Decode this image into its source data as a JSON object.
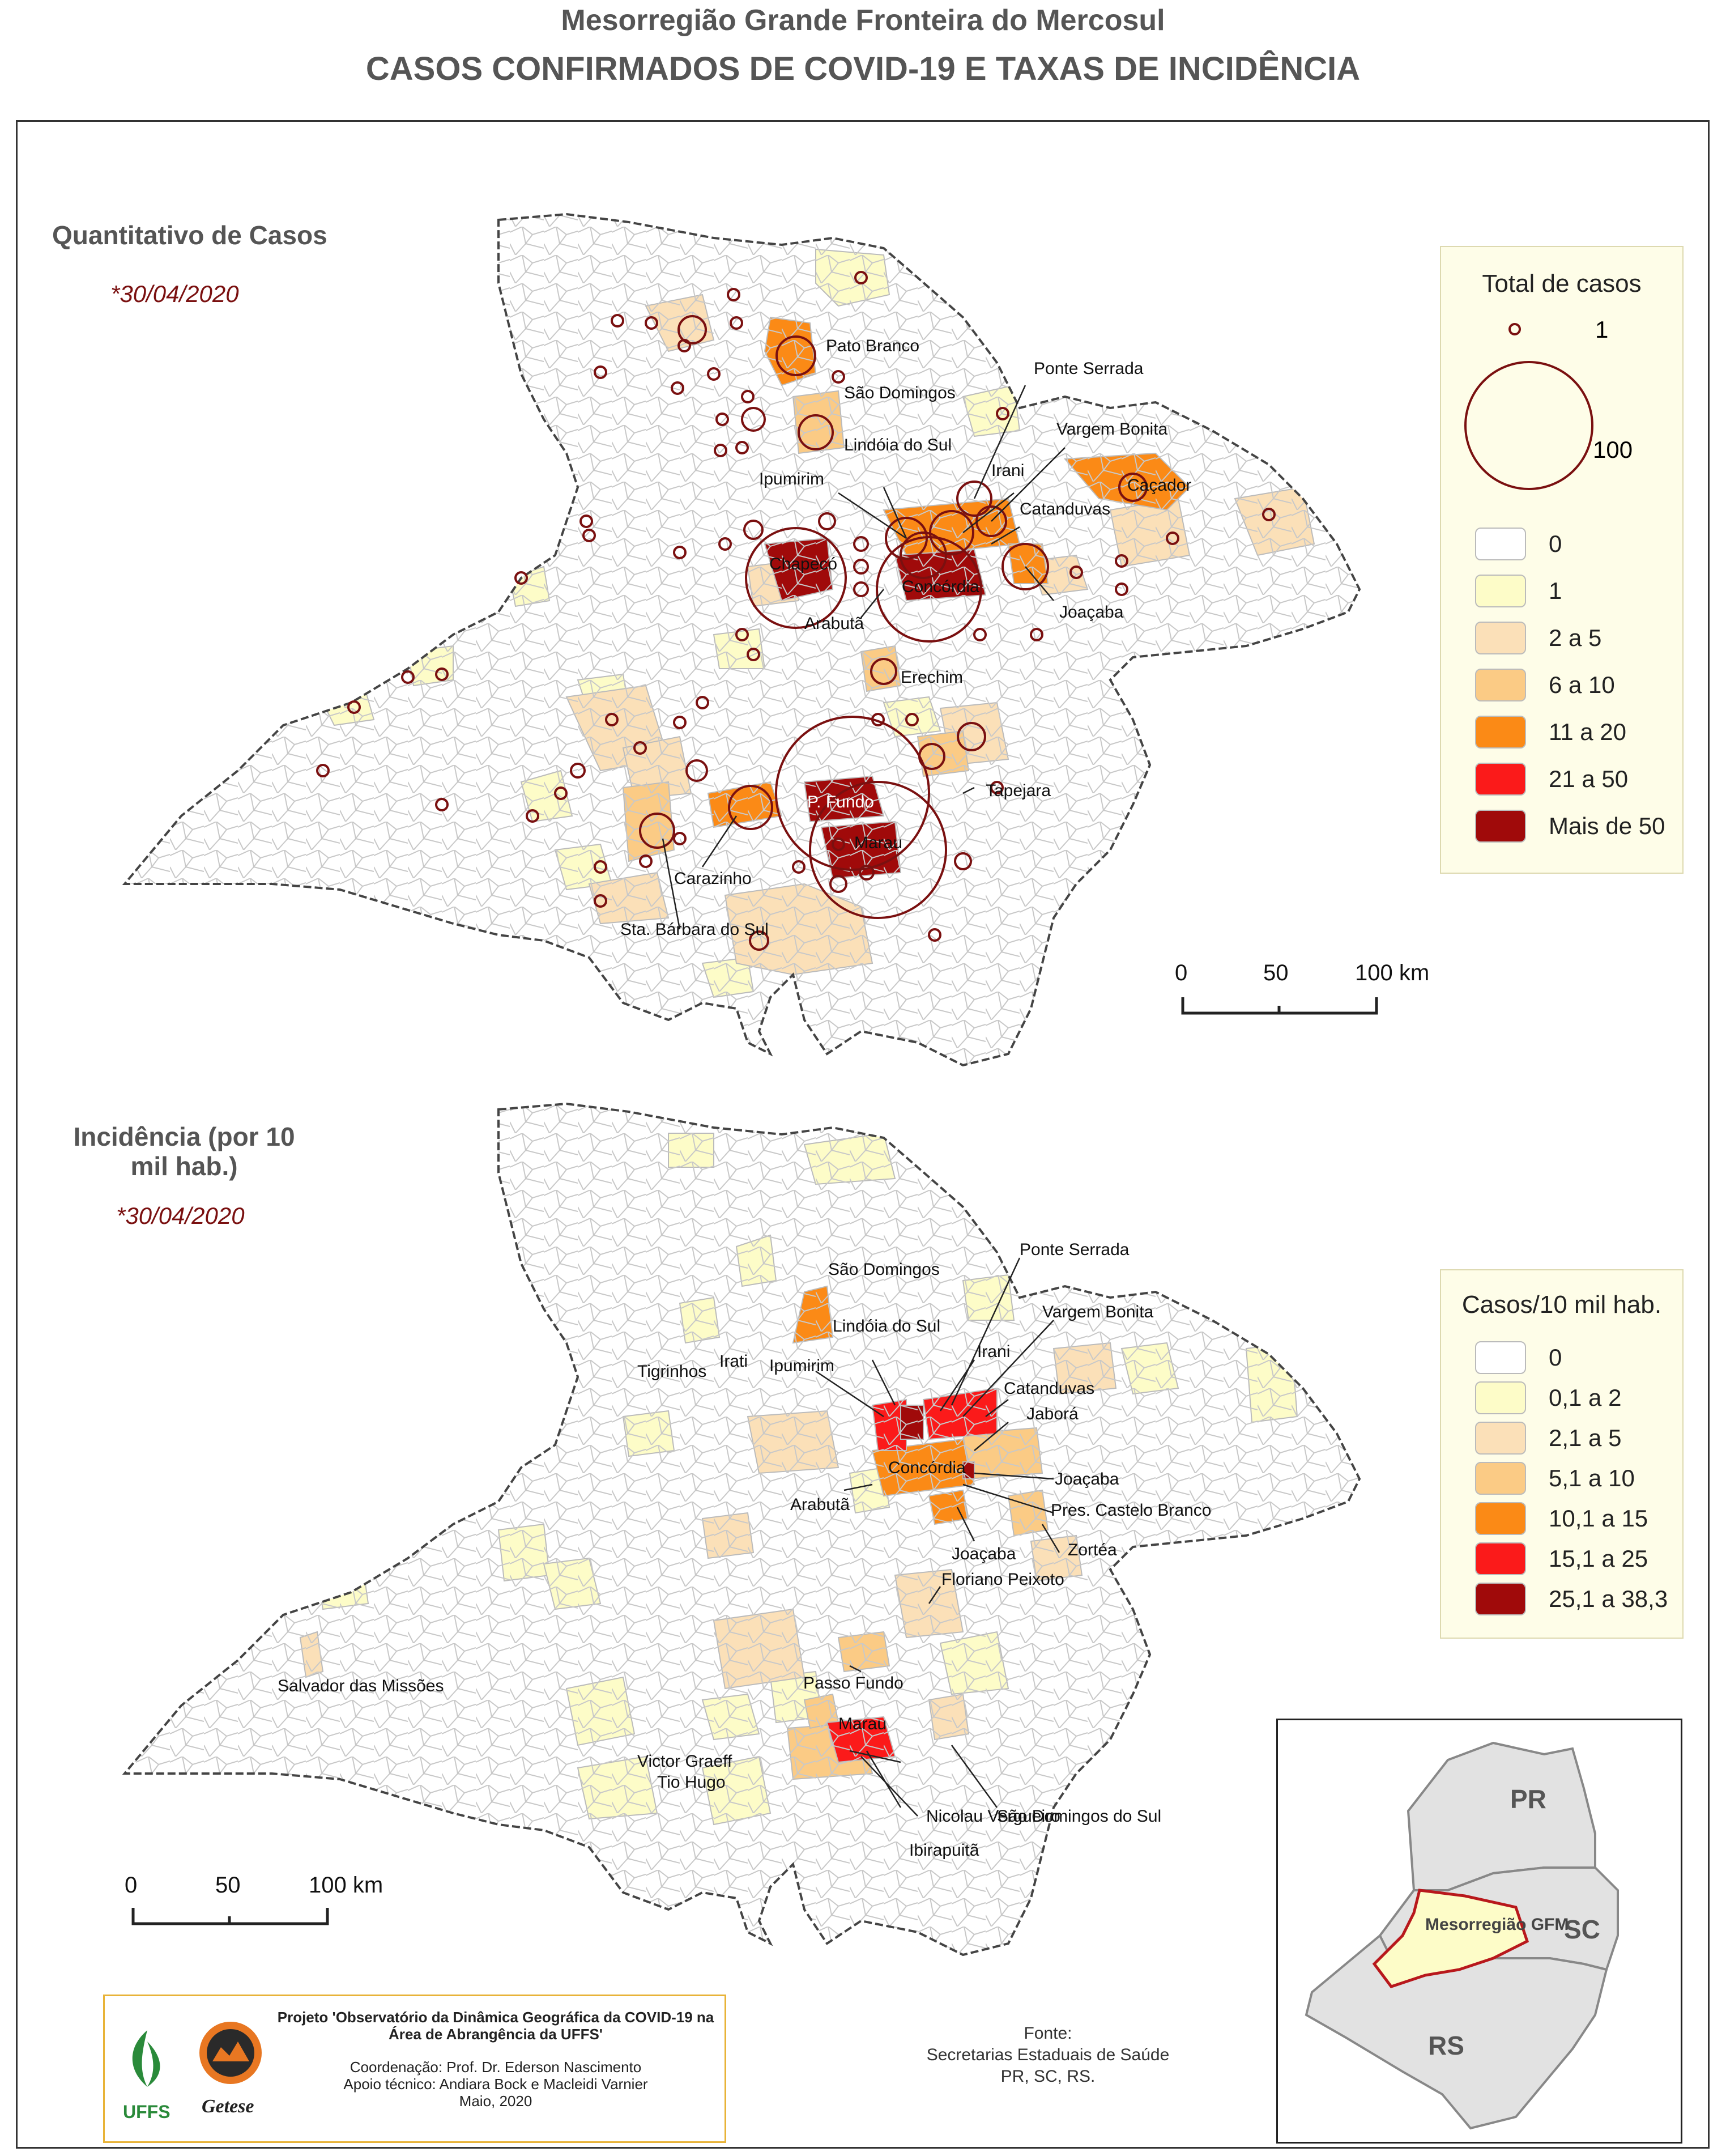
{
  "header": {
    "title": "Mesorregião Grande Fronteira do Mercosul",
    "subtitle": "CASOS CONFIRMADOS DE COVID-19 E TAXAS DE INCIDÊNCIA"
  },
  "map_cases": {
    "section_title": "Quantitativo de Casos",
    "date": "*30/04/2020",
    "legend": {
      "title": "Total de casos",
      "size_labels": [
        "1",
        "100"
      ],
      "classes": [
        {
          "label": "0",
          "color": "#ffffff"
        },
        {
          "label": "1",
          "color": "#fdfcc8"
        },
        {
          "label": "2 a 5",
          "color": "#fbe0b8"
        },
        {
          "label": "6 a 10",
          "color": "#fbcb85"
        },
        {
          "label": "11 a 20",
          "color": "#fb8a16"
        },
        {
          "label": "21 a 50",
          "color": "#fb1a1a"
        },
        {
          "label": "Mais de 50",
          "color": "#a00a0a"
        }
      ]
    },
    "scale": {
      "ticks": [
        "0",
        "50",
        "100 km"
      ]
    },
    "places": {
      "pato_branco": "Pato Branco",
      "sao_domingos": "São Domingos",
      "ponte_serrada": "Ponte Serrada",
      "vargem_bonita": "Vargem Bonita",
      "lindoia": "Lindóia do Sul",
      "cacador": "Caçador",
      "irani": "Irani",
      "ipumirim": "Ipumirim",
      "catanduvas": "Catanduvas",
      "chapeco": "Chapecó",
      "concordia": "Concórdia",
      "joacaba": "Joaçaba",
      "arabuta": "Arabutã",
      "erechim": "Erechim",
      "tapejara": "Tapejara",
      "passo_fundo": "P. Fundo",
      "marau": "Marau",
      "carazinho": "Carazinho",
      "santa_barbara": "Sta. Bárbara do Sul"
    }
  },
  "map_incidence": {
    "section_title": "Incidência (por 10 mil hab.)",
    "date": "*30/04/2020",
    "legend": {
      "title": "Casos/10 mil hab.",
      "classes": [
        {
          "label": "0",
          "color": "#ffffff"
        },
        {
          "label": "0,1 a 2",
          "color": "#fdfcc8"
        },
        {
          "label": "2,1 a 5",
          "color": "#fbe0b8"
        },
        {
          "label": "5,1 a 10",
          "color": "#fbcb85"
        },
        {
          "label": "10,1 a 15",
          "color": "#fb8a16"
        },
        {
          "label": "15,1 a 25",
          "color": "#fb1a1a"
        },
        {
          "label": "25,1 a 38,3",
          "color": "#a00a0a"
        }
      ]
    },
    "scale": {
      "ticks": [
        "0",
        "50",
        "100 km"
      ]
    },
    "places": {
      "sao_domingos": "São Domingos",
      "ponte_serrada": "Ponte Serrada",
      "vargem_bonita": "Vargem Bonita",
      "lindoia": "Lindóia do Sul",
      "irani": "Irani",
      "tigrinhos": "Tigrinhos",
      "irati": "Irati",
      "ipumirim": "Ipumirim",
      "catanduvas": "Catanduvas",
      "jabora": "Jaborá",
      "concordia": "Concórdia",
      "joacaba1": "Joaçaba",
      "arabuta": "Arabutã",
      "pres_castelo": "Pres. Castelo Branco",
      "zortea": "Zortéa",
      "joacaba2": "Joaçaba",
      "floriano": "Floriano Peixoto",
      "salvador": "Salvador das Missões",
      "passo_fundo": "Passo Fundo",
      "marau": "Marau",
      "victor_graeff": "Victor Graeff",
      "tio_hugo": "Tio Hugo",
      "nicolau": "Nicolau Vergueiro",
      "ibirapuita": "Ibirapuitã",
      "sao_domingos_sul": "São Domingos do Sul"
    }
  },
  "inset": {
    "labels": {
      "pr": "PR",
      "sc": "SC",
      "rs": "RS",
      "region": "Mesorregião GFM"
    }
  },
  "credits": {
    "project": "Projeto 'Observatório da Dinâmica Geográfica da COVID-19 na Área de Abrangência da UFFS'",
    "coordination": "Coordenação: Prof. Dr. Ederson Nascimento",
    "support": "Apoio técnico: Andiara Bock e Macleidi Varnier",
    "date": "Maio, 2020",
    "logo1": "UFFS",
    "logo2": "Getese"
  },
  "source": {
    "label": "Fonte:",
    "line1": "Secretarias Estaduais de Saúde",
    "line2": "PR, SC, RS."
  }
}
